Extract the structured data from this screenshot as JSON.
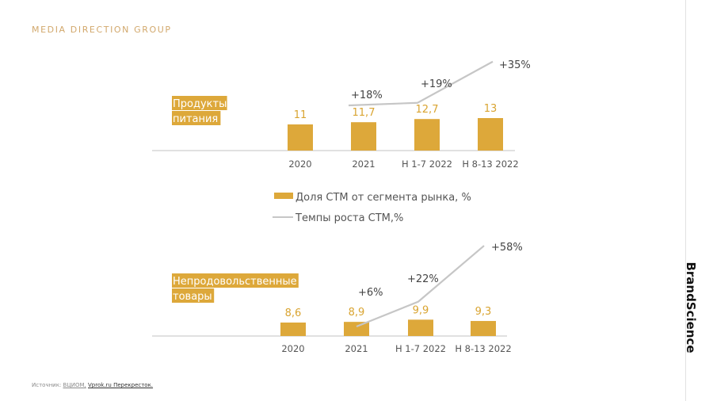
{
  "header": {
    "brand": "MEDIA DIRECTION GROUP"
  },
  "side_brand": "BrandScience",
  "source": {
    "prefix": "Источник:",
    "link1": "ВЦИОМ,",
    "link2": "Vprok.ru Перекресток."
  },
  "colors": {
    "bar": "#dda83a",
    "line": "#c6c6c6",
    "label_bg": "#dda83a",
    "accent_text": "#d9a431"
  },
  "chart_data": [
    {
      "type": "bar",
      "title": "Продукты питания",
      "title_lines": [
        "Продукты",
        "питания"
      ],
      "categories": [
        "2020",
        "2021",
        "Н 1-7 2022",
        "Н 8-13 2022"
      ],
      "series": [
        {
          "name": "Доля СТМ от сегмента рынка, %",
          "type": "bar",
          "values": [
            11,
            11.7,
            12.7,
            13
          ],
          "labels": [
            "11",
            "11,7",
            "12,7",
            "13"
          ]
        },
        {
          "name": "Темпы роста СТМ,%",
          "type": "line",
          "values": [
            null,
            18,
            19,
            35
          ],
          "labels": [
            "",
            "+18%",
            "+19%",
            "+35%"
          ]
        }
      ]
    },
    {
      "type": "bar",
      "title": "Непродовольственные товары",
      "title_lines": [
        "Непродовольственные",
        "товары"
      ],
      "categories": [
        "2020",
        "2021",
        "Н 1-7 2022",
        "Н 8-13 2022"
      ],
      "series": [
        {
          "name": "Доля СТМ от сегмента рынка, %",
          "type": "bar",
          "values": [
            8.6,
            8.9,
            9.9,
            9.3
          ],
          "labels": [
            "8,6",
            "8,9",
            "9,9",
            "9,3"
          ]
        },
        {
          "name": "Темпы роста СТМ,%",
          "type": "line",
          "values": [
            null,
            6,
            22,
            58
          ],
          "labels": [
            "",
            "+6%",
            "+22%",
            "+58%"
          ]
        }
      ]
    }
  ],
  "legend": [
    {
      "name": "Доля СТМ от сегмента рынка, %",
      "kind": "bar"
    },
    {
      "name": "Темпы роста СТМ,%",
      "kind": "line"
    }
  ]
}
